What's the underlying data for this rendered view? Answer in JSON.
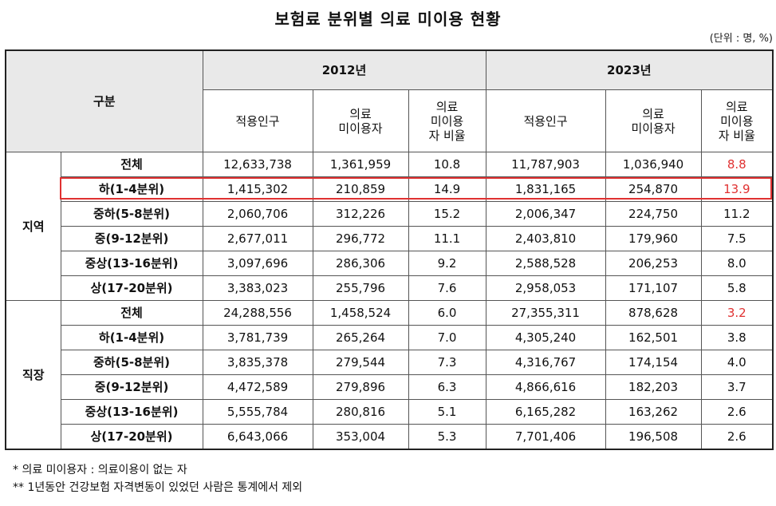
{
  "title": "보험료 분위별 의료 미이용 현황",
  "unit": "(단위 : 명, %)",
  "header": {
    "group": "구분",
    "year1": "2012년",
    "year2": "2023년",
    "cols": {
      "pop": "적용인구",
      "nonuse_1": "의료",
      "nonuse_2": "미이용자",
      "rate_1": "의료",
      "rate_2": "미이용",
      "rate_3": "자 비율"
    }
  },
  "groups": [
    {
      "name": "지역",
      "rows": [
        {
          "cat": "전체",
          "p12": "12,633,738",
          "n12": "1,361,959",
          "r12": "10.8",
          "p23": "11,787,903",
          "n23": "1,036,940",
          "r23": "8.8",
          "r23_red": true
        },
        {
          "cat": "하(1-4분위)",
          "p12": "1,415,302",
          "n12": "210,859",
          "r12": "14.9",
          "p23": "1,831,165",
          "n23": "254,870",
          "r23": "13.9",
          "r23_red": true
        },
        {
          "cat": "중하(5-8분위)",
          "p12": "2,060,706",
          "n12": "312,226",
          "r12": "15.2",
          "p23": "2,006,347",
          "n23": "224,750",
          "r23": "11.2"
        },
        {
          "cat": "중(9-12분위)",
          "p12": "2,677,011",
          "n12": "296,772",
          "r12": "11.1",
          "p23": "2,403,810",
          "n23": "179,960",
          "r23": "7.5"
        },
        {
          "cat": "중상(13-16분위)",
          "p12": "3,097,696",
          "n12": "286,306",
          "r12": "9.2",
          "p23": "2,588,528",
          "n23": "206,253",
          "r23": "8.0"
        },
        {
          "cat": "상(17-20분위)",
          "p12": "3,383,023",
          "n12": "255,796",
          "r12": "7.6",
          "p23": "2,958,053",
          "n23": "171,107",
          "r23": "5.8"
        }
      ]
    },
    {
      "name": "직장",
      "rows": [
        {
          "cat": "전체",
          "p12": "24,288,556",
          "n12": "1,458,524",
          "r12": "6.0",
          "p23": "27,355,311",
          "n23": "878,628",
          "r23": "3.2",
          "r23_red": true
        },
        {
          "cat": "하(1-4분위)",
          "p12": "3,781,739",
          "n12": "265,264",
          "r12": "7.0",
          "p23": "4,305,240",
          "n23": "162,501",
          "r23": "3.8"
        },
        {
          "cat": "중하(5-8분위)",
          "p12": "3,835,378",
          "n12": "279,544",
          "r12": "7.3",
          "p23": "4,316,767",
          "n23": "174,154",
          "r23": "4.0"
        },
        {
          "cat": "중(9-12분위)",
          "p12": "4,472,589",
          "n12": "279,896",
          "r12": "6.3",
          "p23": "4,866,616",
          "n23": "182,203",
          "r23": "3.7"
        },
        {
          "cat": "중상(13-16분위)",
          "p12": "5,555,784",
          "n12": "280,816",
          "r12": "5.1",
          "p23": "6,165,282",
          "n23": "163,262",
          "r23": "2.6"
        },
        {
          "cat": "상(17-20분위)",
          "p12": "6,643,066",
          "n12": "353,004",
          "r12": "5.3",
          "p23": "7,701,406",
          "n23": "196,508",
          "r23": "2.6"
        }
      ]
    }
  ],
  "notes": [
    "* 의료 미이용자 : 의료이용이 없는 자",
    "** 1년동안 건강보험 자격변동이 있었던 사람은 통계에서 제외"
  ],
  "colors": {
    "highlight": "#e03131",
    "header_bg": "#e9e9e9"
  }
}
